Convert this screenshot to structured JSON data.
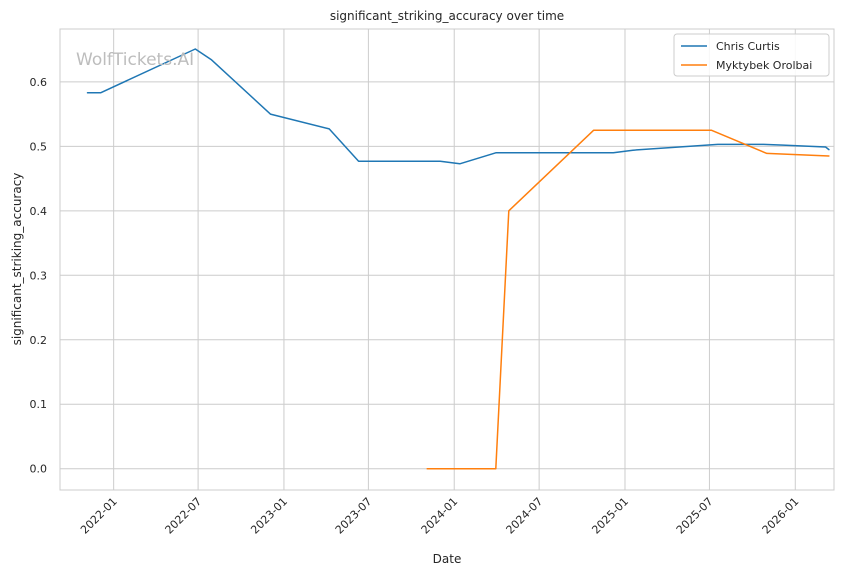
{
  "watermark": "WolfTickets.AI",
  "chart_data": {
    "type": "line",
    "title": "significant_striking_accuracy over time",
    "xlabel": "Date",
    "ylabel": "significant_striking_accuracy",
    "xlim": [
      "2021-09-08",
      "2026-03-25"
    ],
    "ylim": [
      -0.033,
      0.682
    ],
    "x_ticks": [
      "2022-01",
      "2022-07",
      "2023-01",
      "2023-07",
      "2024-01",
      "2024-07",
      "2025-01",
      "2025-07",
      "2026-01"
    ],
    "x_tick_dates": [
      "2022-01-01",
      "2022-07-01",
      "2023-01-01",
      "2023-07-01",
      "2024-01-01",
      "2024-07-01",
      "2025-01-01",
      "2025-07-01",
      "2026-01-01"
    ],
    "y_ticks": [
      "0.0",
      "0.1",
      "0.2",
      "0.3",
      "0.4",
      "0.5",
      "0.6"
    ],
    "y_tick_values": [
      0,
      0.1,
      0.2,
      0.3,
      0.4,
      0.5,
      0.6
    ],
    "grid": true,
    "legend_position": "top-right",
    "series": [
      {
        "name": "Chris Curtis",
        "color": "#1f77b4",
        "points": [
          {
            "x": "2021-11-06",
            "y": 0.583
          },
          {
            "x": "2021-12-04",
            "y": 0.583
          },
          {
            "x": "2022-06-25",
            "y": 0.651
          },
          {
            "x": "2022-07-30",
            "y": 0.634
          },
          {
            "x": "2022-12-03",
            "y": 0.55
          },
          {
            "x": "2023-04-08",
            "y": 0.527
          },
          {
            "x": "2023-06-10",
            "y": 0.477
          },
          {
            "x": "2023-12-02",
            "y": 0.477
          },
          {
            "x": "2024-01-13",
            "y": 0.473
          },
          {
            "x": "2024-03-30",
            "y": 0.49
          },
          {
            "x": "2024-12-07",
            "y": 0.49
          },
          {
            "x": "2025-01-18",
            "y": 0.494
          },
          {
            "x": "2025-07-19",
            "y": 0.503
          },
          {
            "x": "2025-10-25",
            "y": 0.503
          },
          {
            "x": "2025-12-06",
            "y": 0.502
          },
          {
            "x": "2026-03-07",
            "y": 0.499
          },
          {
            "x": "2026-03-14",
            "y": 0.495
          }
        ]
      },
      {
        "name": "Myktybek Orolbai",
        "color": "#ff7f0e",
        "points": [
          {
            "x": "2023-11-04",
            "y": 0.0
          },
          {
            "x": "2024-03-30",
            "y": 0.0
          },
          {
            "x": "2024-04-27",
            "y": 0.4
          },
          {
            "x": "2024-10-26",
            "y": 0.525
          },
          {
            "x": "2025-07-05",
            "y": 0.525
          },
          {
            "x": "2025-11-01",
            "y": 0.489
          },
          {
            "x": "2026-03-14",
            "y": 0.485
          }
        ]
      }
    ]
  }
}
